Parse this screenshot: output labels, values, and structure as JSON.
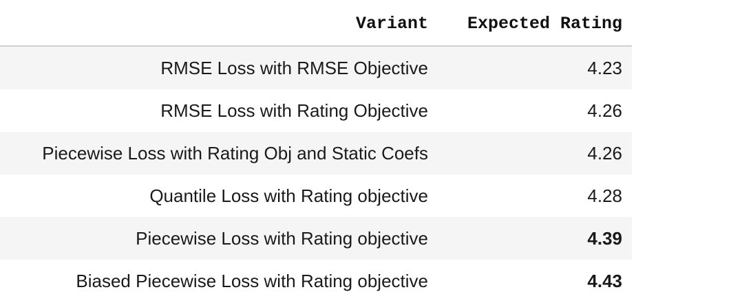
{
  "table": {
    "headers": {
      "variant": "Variant",
      "rating": "Expected Rating"
    },
    "rows": [
      {
        "variant": "RMSE Loss with RMSE Objective",
        "rating": "4.23",
        "bold": false
      },
      {
        "variant": "RMSE Loss with Rating Objective",
        "rating": "4.26",
        "bold": false
      },
      {
        "variant": "Piecewise Loss with Rating Obj and Static Coefs",
        "rating": "4.26",
        "bold": false
      },
      {
        "variant": "Quantile Loss with Rating objective",
        "rating": "4.28",
        "bold": false
      },
      {
        "variant": "Piecewise Loss with Rating objective",
        "rating": "4.39",
        "bold": true
      },
      {
        "variant": "Biased Piecewise Loss with Rating objective",
        "rating": "4.43",
        "bold": true
      }
    ]
  },
  "colors": {
    "stripe": "#f5f5f5",
    "background": "#ffffff",
    "header_rule": "#cfcfcf"
  }
}
